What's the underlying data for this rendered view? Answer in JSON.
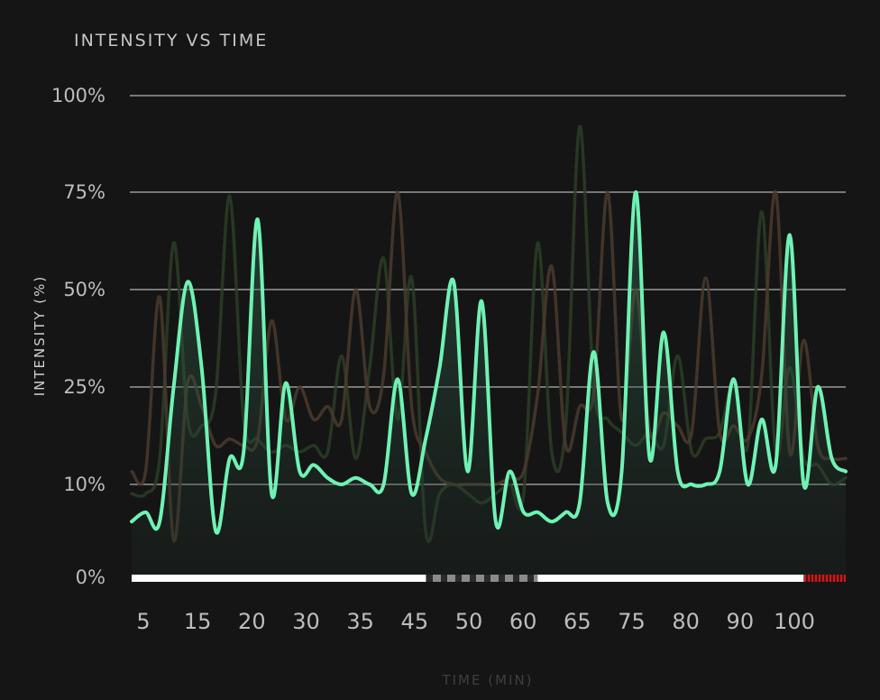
{
  "chart_data": {
    "type": "line",
    "title": "INTENSITY VS TIME",
    "xlabel": "TIME (MIN)",
    "ylabel": "INTENSITY (%)",
    "x_ticks": [
      "5",
      "15",
      "20",
      "30",
      "35",
      "45",
      "50",
      "60",
      "65",
      "75",
      "80",
      "90",
      "100"
    ],
    "y_ticks": [
      {
        "label": "0%",
        "value": 0
      },
      {
        "label": "10%",
        "value": 10
      },
      {
        "label": "25%",
        "value": 25
      },
      {
        "label": "50%",
        "value": 50
      },
      {
        "label": "75%",
        "value": 75
      },
      {
        "label": "100%",
        "value": 100
      }
    ],
    "ylim": [
      0,
      100
    ],
    "grid": true,
    "x": [
      5,
      7,
      9,
      11,
      13,
      15,
      17,
      19,
      21,
      23,
      25,
      27,
      29,
      31,
      33,
      35,
      37,
      39,
      41,
      43,
      45,
      47,
      49,
      51,
      53,
      55,
      57,
      59,
      61,
      63,
      65,
      67,
      69,
      71,
      73,
      75,
      77,
      79,
      81,
      83,
      85,
      87,
      89,
      91,
      93,
      95,
      97,
      99,
      101,
      103,
      105,
      107
    ],
    "series": [
      {
        "color": "#6ff2b4",
        "emphasis": true,
        "values": [
          6,
          7,
          6,
          25,
          52,
          30,
          5,
          14,
          15,
          68,
          9,
          26,
          12,
          13,
          11,
          10,
          11,
          10,
          10,
          27,
          9,
          17,
          30,
          52,
          12,
          47,
          6,
          12,
          7,
          7,
          6,
          7,
          8,
          34,
          8,
          12,
          75,
          14,
          39,
          12,
          10,
          10,
          12,
          27,
          10,
          20,
          13,
          64,
          10,
          25,
          14,
          12
        ]
      },
      {
        "color": "#2c3d26",
        "values": [
          9,
          9,
          14,
          62,
          20,
          19,
          24,
          74,
          20,
          17,
          15,
          16,
          15,
          16,
          15,
          33,
          14,
          30,
          58,
          20,
          53,
          5,
          9,
          10,
          9,
          8,
          9,
          10,
          9,
          62,
          15,
          19,
          92,
          25,
          20,
          18,
          16,
          18,
          16,
          33,
          15,
          17,
          18,
          26,
          16,
          70,
          15,
          30,
          14,
          13,
          10,
          11
        ]
      },
      {
        "color": "#4a3a2d",
        "values": [
          12,
          12,
          48,
          4,
          26,
          22,
          16,
          17,
          16,
          17,
          42,
          20,
          25,
          20,
          22,
          20,
          50,
          22,
          28,
          75,
          22,
          15,
          11,
          10,
          10,
          10,
          10,
          11,
          12,
          24,
          56,
          16,
          22,
          24,
          75,
          20,
          50,
          18,
          21,
          19,
          18,
          53,
          18,
          19,
          17,
          28,
          75,
          15,
          37,
          16,
          14,
          14
        ]
      }
    ],
    "progress_segments": [
      {
        "from_x": 5,
        "to_x": 47,
        "color": "#ffffff",
        "style": "solid"
      },
      {
        "from_x": 47,
        "to_x": 63,
        "color": "#8a8a8a",
        "style": "dashed"
      },
      {
        "from_x": 63,
        "to_x": 101,
        "color": "#ffffff",
        "style": "solid"
      },
      {
        "from_x": 101,
        "to_x": 107,
        "color": "#c0201c",
        "style": "hatched"
      }
    ]
  }
}
